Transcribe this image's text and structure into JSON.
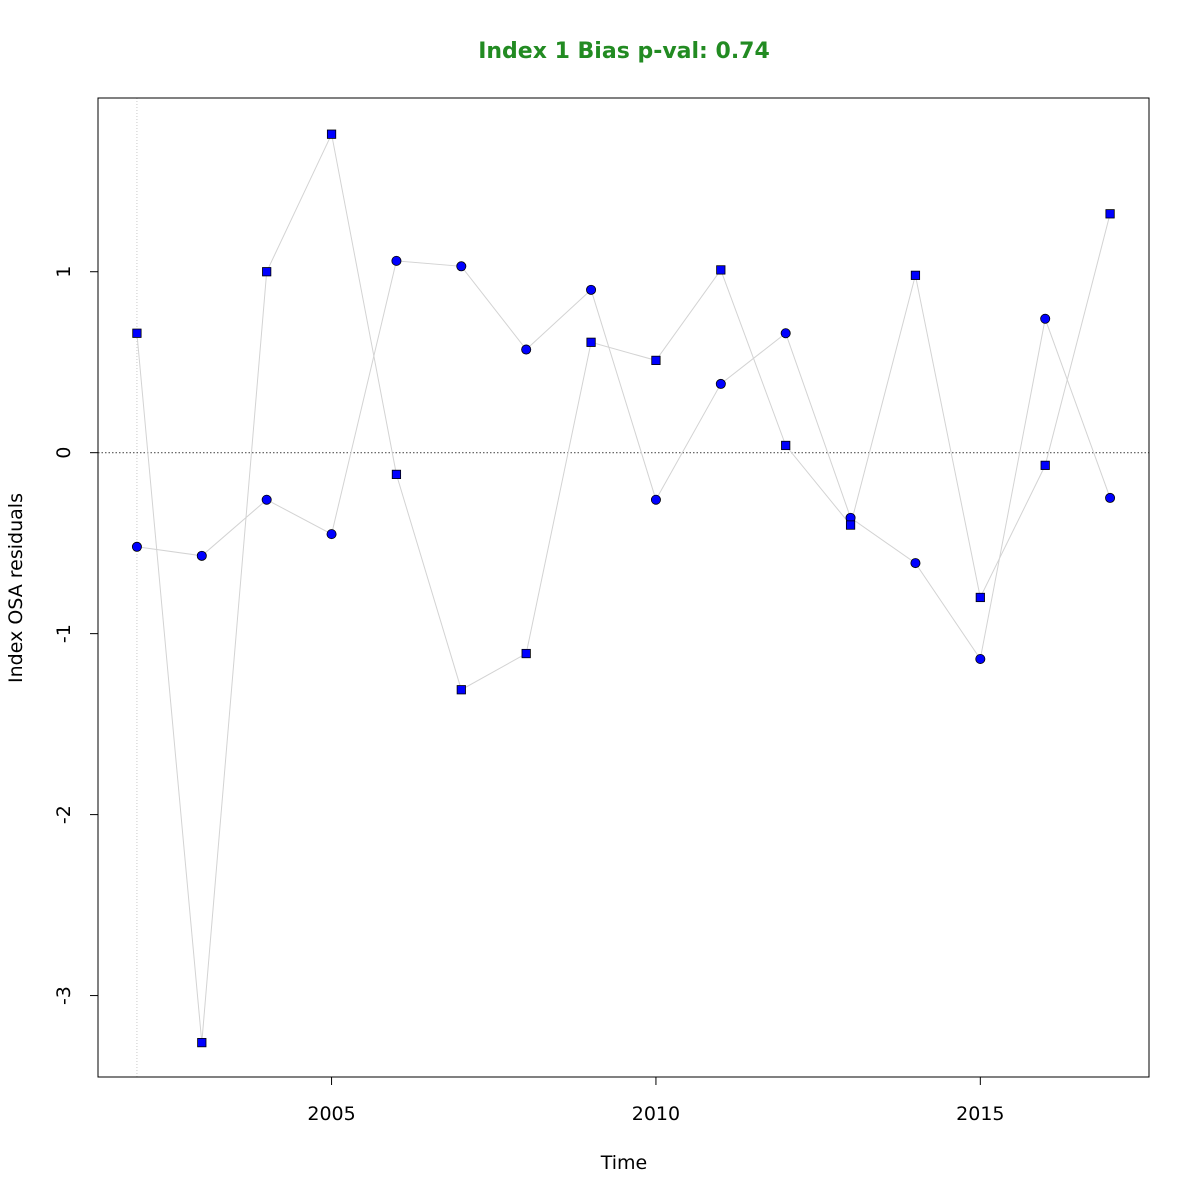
{
  "chart_data": {
    "type": "scatter",
    "title": "Index 1 Bias p-val: 0.74",
    "title_color": "#228B22",
    "xlabel": "Time",
    "ylabel": "Index OSA residuals",
    "xlim": [
      2001.4,
      2017.6
    ],
    "ylim": [
      -3.45,
      1.96
    ],
    "x_ticks": [
      2005,
      2010,
      2015
    ],
    "y_ticks": [
      -3,
      -2,
      -1,
      0,
      1
    ],
    "reference_hline": 0,
    "reference_vline": 2002,
    "point_color": "#0000FF",
    "line_color": "#D3D3D3",
    "grid": false,
    "series": [
      {
        "marker": "circle",
        "x": [
          2002,
          2003,
          2004,
          2005,
          2006,
          2007,
          2008,
          2009,
          2010,
          2011,
          2012,
          2013,
          2014,
          2015,
          2016,
          2017
        ],
        "values": [
          -0.52,
          -0.57,
          -0.26,
          -0.45,
          1.06,
          1.03,
          0.57,
          0.9,
          -0.26,
          0.38,
          0.66,
          -0.36,
          -0.61,
          -1.14,
          0.74,
          -0.25
        ]
      },
      {
        "marker": "square",
        "x": [
          2002,
          2003,
          2004,
          2005,
          2006,
          2007,
          2008,
          2009,
          2010,
          2011,
          2012,
          2013,
          2014,
          2015,
          2016,
          2017
        ],
        "values": [
          0.66,
          -3.26,
          1.0,
          1.76,
          -0.12,
          -1.31,
          -1.11,
          0.61,
          0.51,
          1.01,
          0.04,
          -0.4,
          0.98,
          -0.8,
          -0.07,
          1.32
        ]
      }
    ]
  }
}
